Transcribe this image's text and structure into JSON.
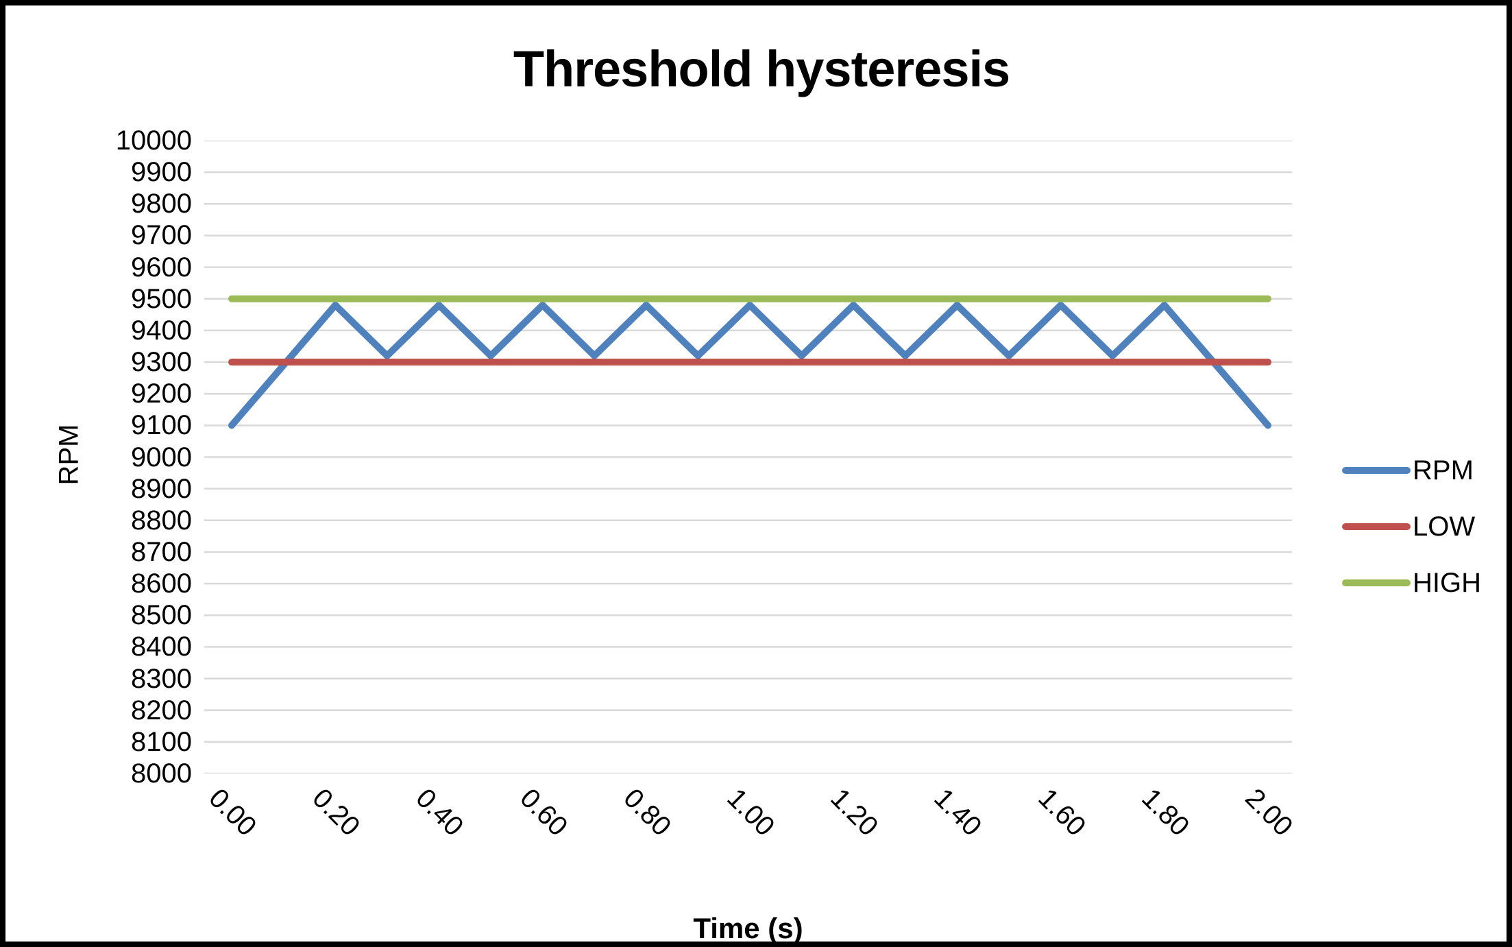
{
  "title": "Threshold hysteresis",
  "axes": {
    "y_title": "RPM",
    "x_title": "Time (s)"
  },
  "legend": [
    {
      "label": "RPM",
      "color": "#4F81BD"
    },
    {
      "label": "LOW",
      "color": "#C0504D"
    },
    {
      "label": "HIGH",
      "color": "#9BBB59"
    }
  ],
  "colors": {
    "rpm_line": "#4F81BD",
    "low_line": "#C0504D",
    "high_line": "#9BBB59",
    "gridline": "#D9D9D9",
    "text": "#000000",
    "border": "#000000",
    "background": "#FFFFFF"
  },
  "chart_data": {
    "type": "line",
    "title": "Threshold hysteresis",
    "xlabel": "Time (s)",
    "ylabel": "RPM",
    "xlim": [
      0.0,
      2.0
    ],
    "ylim": [
      8000,
      10000
    ],
    "y_tick_step": 100,
    "x_tick_step": 0.2,
    "grid": "horizontal",
    "legend_position": "right",
    "x_ticks": [
      "0.00",
      "0.20",
      "0.40",
      "0.60",
      "0.80",
      "1.00",
      "1.20",
      "1.40",
      "1.60",
      "1.80",
      "2.00"
    ],
    "y_ticks": [
      "10000",
      "9900",
      "9800",
      "9700",
      "9600",
      "9500",
      "9400",
      "9300",
      "9200",
      "9100",
      "9000",
      "8900",
      "8800",
      "8700",
      "8600",
      "8500",
      "8400",
      "8300",
      "8200",
      "8100",
      "8000"
    ],
    "series": [
      {
        "name": "RPM",
        "color": "#4F81BD",
        "points": [
          [
            0.0,
            9100
          ],
          [
            0.2,
            9480
          ],
          [
            0.3,
            9320
          ],
          [
            0.4,
            9480
          ],
          [
            0.5,
            9320
          ],
          [
            0.6,
            9480
          ],
          [
            0.7,
            9320
          ],
          [
            0.8,
            9480
          ],
          [
            0.9,
            9320
          ],
          [
            1.0,
            9480
          ],
          [
            1.1,
            9320
          ],
          [
            1.2,
            9480
          ],
          [
            1.3,
            9320
          ],
          [
            1.4,
            9480
          ],
          [
            1.5,
            9320
          ],
          [
            1.6,
            9480
          ],
          [
            1.7,
            9320
          ],
          [
            1.8,
            9480
          ],
          [
            2.0,
            9100
          ]
        ]
      },
      {
        "name": "LOW",
        "color": "#C0504D",
        "points": [
          [
            0.0,
            9300
          ],
          [
            2.0,
            9300
          ]
        ]
      },
      {
        "name": "HIGH",
        "color": "#9BBB59",
        "points": [
          [
            0.0,
            9500
          ],
          [
            2.0,
            9500
          ]
        ]
      }
    ]
  }
}
